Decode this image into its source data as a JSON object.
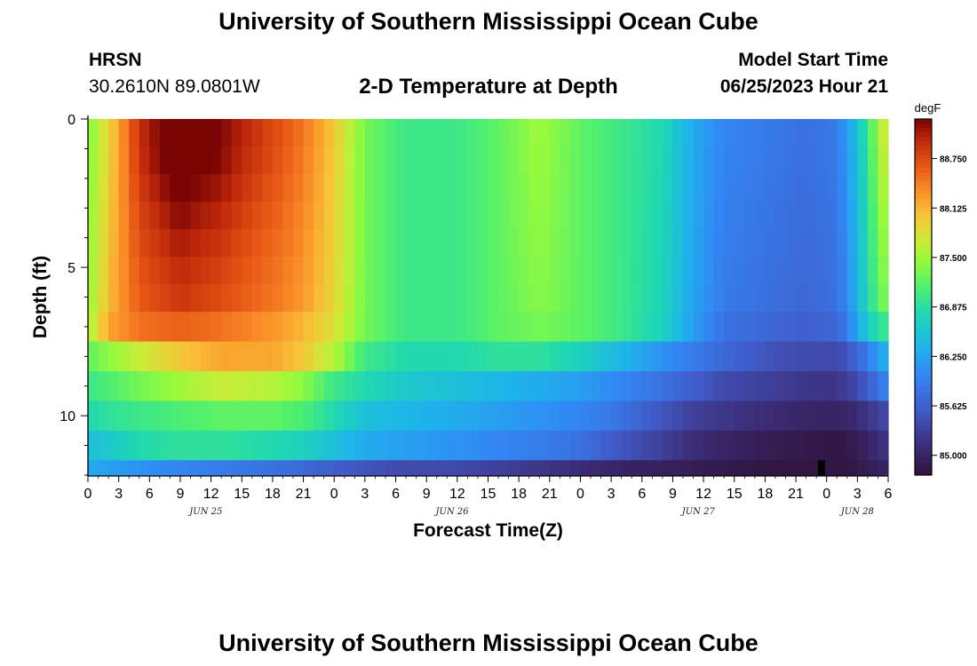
{
  "header": {
    "title": "University of Southern Mississippi Ocean Cube",
    "station": "HRSN",
    "coords": "30.2610N  89.0801W",
    "plot_title": "2-D Temperature at Depth",
    "start_label": "Model Start Time",
    "start_time": "06/25/2023 Hour 21"
  },
  "footer": {
    "title": "University of Southern Mississippi Ocean Cube"
  },
  "chart_data": {
    "type": "heatmap",
    "title": "2-D Temperature at Depth",
    "xlabel": "Forecast Time(Z)",
    "ylabel": "Depth (ft)",
    "x_range_hours": [
      0,
      78
    ],
    "x_tick_labels": [
      "0",
      "3",
      "6",
      "9",
      "12",
      "15",
      "18",
      "21",
      "0",
      "3",
      "6",
      "9",
      "12",
      "15",
      "18",
      "21",
      "0",
      "3",
      "6",
      "9",
      "12",
      "15",
      "18",
      "21",
      "0",
      "3",
      "6"
    ],
    "date_labels": [
      {
        "label": "JUN 25",
        "hour": 11.5
      },
      {
        "label": "JUN 26",
        "hour": 35.5
      },
      {
        "label": "JUN 27",
        "hour": 59.5
      },
      {
        "label": "JUN 28",
        "hour": 75
      }
    ],
    "y_range": [
      0,
      12
    ],
    "y_ticks": [
      0,
      5,
      10
    ],
    "colorbar": {
      "unit": "degF",
      "min": 84.75,
      "max": 89.25,
      "tick_labels": [
        "88.750",
        "88.125",
        "87.500",
        "86.875",
        "86.250",
        "85.625",
        "85.000"
      ],
      "tick_values": [
        88.75,
        88.125,
        87.5,
        86.875,
        86.25,
        85.625,
        85.0
      ]
    },
    "depth_layers": [
      {
        "top": 0,
        "bottom": 6.5,
        "row_steps": 7
      },
      {
        "top": 6.5,
        "bottom": 7.5
      },
      {
        "top": 7.5,
        "bottom": 8.5
      },
      {
        "top": 8.5,
        "bottom": 9.5
      },
      {
        "top": 9.5,
        "bottom": 10.5
      },
      {
        "top": 10.5,
        "bottom": 11.5
      },
      {
        "top": 11.5,
        "bottom": 12
      }
    ],
    "time_keyframes_hours": [
      0,
      2,
      5,
      9,
      13,
      18,
      21,
      24,
      27,
      31,
      36,
      40,
      44,
      48,
      52,
      56,
      59,
      62,
      66,
      70,
      73,
      74,
      75,
      76,
      77,
      78
    ],
    "temperature_by_layer_degF": [
      [
        87.3,
        87.9,
        88.8,
        89.2,
        89.0,
        88.7,
        88.5,
        88.0,
        87.3,
        87.0,
        87.0,
        87.2,
        87.5,
        87.2,
        87.0,
        86.8,
        86.3,
        86.0,
        85.9,
        85.8,
        85.9,
        86.2,
        86.5,
        87.0,
        87.5,
        87.9
      ],
      [
        87.5,
        88.2,
        88.5,
        88.6,
        88.5,
        88.3,
        88.1,
        87.8,
        87.3,
        87.0,
        87.0,
        87.2,
        87.3,
        87.2,
        87.0,
        86.7,
        86.2,
        85.8,
        85.7,
        85.6,
        85.7,
        85.9,
        86.3,
        86.6,
        86.9,
        87.0
      ],
      [
        87.2,
        87.4,
        87.7,
        88.0,
        88.2,
        88.2,
        88.0,
        87.6,
        87.0,
        86.8,
        86.8,
        86.9,
        86.9,
        86.7,
        86.4,
        86.1,
        85.9,
        85.7,
        85.5,
        85.4,
        85.4,
        85.5,
        85.7,
        85.9,
        86.2,
        86.4
      ],
      [
        87.0,
        87.1,
        87.3,
        87.5,
        87.7,
        87.6,
        87.4,
        87.0,
        86.8,
        86.6,
        86.5,
        86.4,
        86.3,
        86.2,
        86.0,
        85.8,
        85.6,
        85.4,
        85.3,
        85.2,
        85.2,
        85.3,
        85.4,
        85.6,
        85.8,
        86.0
      ],
      [
        86.8,
        86.9,
        87.0,
        87.1,
        87.2,
        87.2,
        87.1,
        86.8,
        86.5,
        86.4,
        86.3,
        86.2,
        86.1,
        86.0,
        85.8,
        85.5,
        85.3,
        85.2,
        85.1,
        85.0,
        85.0,
        85.0,
        85.1,
        85.2,
        85.3,
        85.4
      ],
      [
        86.5,
        86.6,
        86.8,
        86.9,
        86.9,
        86.8,
        86.7,
        86.5,
        86.3,
        86.2,
        86.1,
        86.0,
        85.9,
        85.8,
        85.5,
        85.3,
        85.1,
        85.0,
        84.9,
        84.85,
        84.8,
        84.85,
        84.9,
        85.0,
        85.1,
        85.2
      ],
      [
        86.3,
        86.2,
        86.1,
        86.0,
        85.9,
        85.8,
        85.7,
        85.6,
        85.5,
        85.4,
        85.4,
        85.3,
        85.2,
        85.1,
        85.0,
        84.95,
        84.9,
        84.85,
        84.8,
        84.8,
        84.8,
        84.8,
        84.85,
        84.9,
        84.95,
        85.0
      ]
    ],
    "surface_time_boost_degF": [
      {
        "hour": 9,
        "delta": 0.5
      },
      {
        "hour": 12,
        "delta": 0.4
      },
      {
        "hour": 15,
        "delta": 0.2
      }
    ],
    "blank_marker": {
      "hour": 71.5,
      "depth_top": 11.5,
      "depth_bottom": 12
    }
  },
  "colors": {
    "axis": "#000000",
    "marker": "#000000"
  }
}
